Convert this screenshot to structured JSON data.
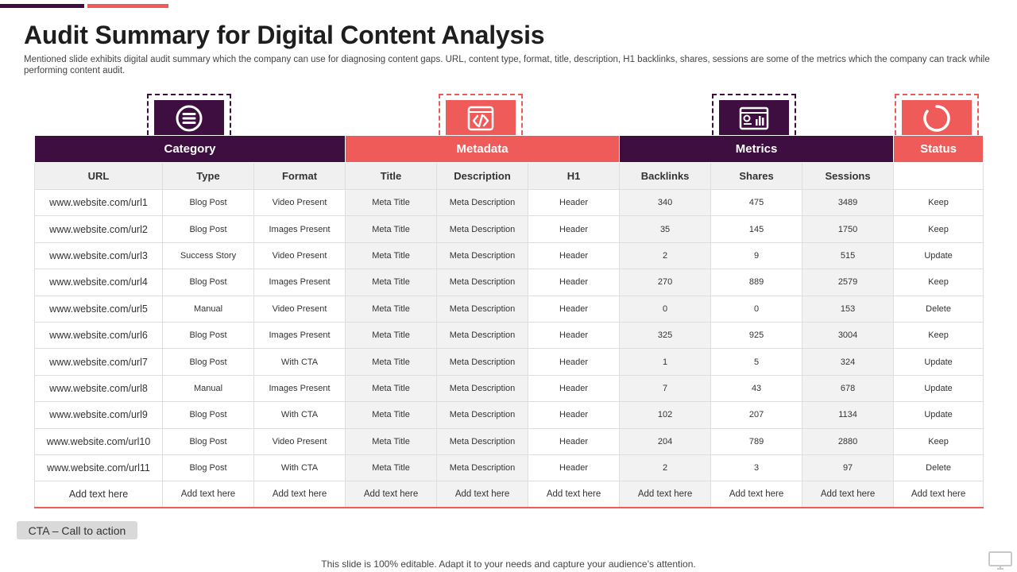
{
  "slide": {
    "title": "Audit Summary for Digital Content Analysis",
    "subtitle": "Mentioned slide exhibits digital audit summary which the company can use for diagnosing content gaps. URL, content type, format, title, description, H1 backlinks, shares, sessions are some of the metrics which the company can track while performing content audit.",
    "cta_label": "CTA – Call to action",
    "footer": "This slide is 100% editable. Adapt it to your needs and capture your audience’s attention."
  },
  "colors": {
    "purple": "#3d0e3f",
    "red": "#ef5b58",
    "keep": "#22a33c",
    "update": "#e58a1f",
    "delete": "#d11f1f"
  },
  "groups": [
    {
      "label": "Category",
      "icon": "list-menu-icon"
    },
    {
      "label": "Metadata",
      "icon": "code-icon"
    },
    {
      "label": "Metrics",
      "icon": "dashboard-icon"
    },
    {
      "label": "Status",
      "icon": "ring-icon"
    }
  ],
  "columns": [
    "URL",
    "Type",
    "Format",
    "Title",
    "Description",
    "H1",
    "Backlinks",
    "Shares",
    "Sessions",
    ""
  ],
  "rows": [
    {
      "url": "www.website.com/url1",
      "type": "Blog Post",
      "format": "Video Present",
      "title": "Meta Title",
      "description": "Meta Description",
      "h1": "Header",
      "backlinks": "340",
      "shares": "475",
      "sessions": "3489",
      "status": "Keep"
    },
    {
      "url": "www.website.com/url2",
      "type": "Blog Post",
      "format": "Images  Present",
      "title": "Meta Title",
      "description": "Meta Description",
      "h1": "Header",
      "backlinks": "35",
      "shares": "145",
      "sessions": "1750",
      "status": "Keep"
    },
    {
      "url": "www.website.com/url3",
      "type": "Success Story",
      "format": "Video Present",
      "title": "Meta Title",
      "description": "Meta Description",
      "h1": "Header",
      "backlinks": "2",
      "shares": "9",
      "sessions": "515",
      "status": "Update"
    },
    {
      "url": "www.website.com/url4",
      "type": "Blog Post",
      "format": "Images  Present",
      "title": "Meta Title",
      "description": "Meta Description",
      "h1": "Header",
      "backlinks": "270",
      "shares": "889",
      "sessions": "2579",
      "status": "Keep"
    },
    {
      "url": "www.website.com/url5",
      "type": "Manual",
      "format": "Video Present",
      "title": "Meta Title",
      "description": "Meta Description",
      "h1": "Header",
      "backlinks": "0",
      "shares": "0",
      "sessions": "153",
      "status": "Delete"
    },
    {
      "url": "www.website.com/url6",
      "type": "Blog Post",
      "format": "Images  Present",
      "title": "Meta Title",
      "description": "Meta Description",
      "h1": "Header",
      "backlinks": "325",
      "shares": "925",
      "sessions": "3004",
      "status": "Keep"
    },
    {
      "url": "www.website.com/url7",
      "type": "Blog Post",
      "format": "With CTA",
      "title": "Meta Title",
      "description": "Meta Description",
      "h1": "Header",
      "backlinks": "1",
      "shares": "5",
      "sessions": "324",
      "status": "Update"
    },
    {
      "url": "www.website.com/url8",
      "type": "Manual",
      "format": "Images  Present",
      "title": "Meta Title",
      "description": "Meta Description",
      "h1": "Header",
      "backlinks": "7",
      "shares": "43",
      "sessions": "678",
      "status": "Update"
    },
    {
      "url": "www.website.com/url9",
      "type": "Blog Post",
      "format": "With CTA",
      "title": "Meta Title",
      "description": "Meta Description",
      "h1": "Header",
      "backlinks": "102",
      "shares": "207",
      "sessions": "1134",
      "status": "Update"
    },
    {
      "url": "www.website.com/url10",
      "type": "Blog Post",
      "format": "Video Present",
      "title": "Meta Title",
      "description": "Meta Description",
      "h1": "Header",
      "backlinks": "204",
      "shares": "789",
      "sessions": "2880",
      "status": "Keep"
    },
    {
      "url": "www.website.com/url11",
      "type": "Blog Post",
      "format": "With CTA",
      "title": "Meta Title",
      "description": "Meta Description",
      "h1": "Header",
      "backlinks": "2",
      "shares": "3",
      "sessions": "97",
      "status": "Delete"
    },
    {
      "url": "Add text here",
      "type": "Add text here",
      "format": "Add text here",
      "title": "Add text here",
      "description": "Add text here",
      "h1": "Add text here",
      "backlinks": "Add text here",
      "shares": "Add text here",
      "sessions": "Add text here",
      "status": "Add text here"
    }
  ]
}
